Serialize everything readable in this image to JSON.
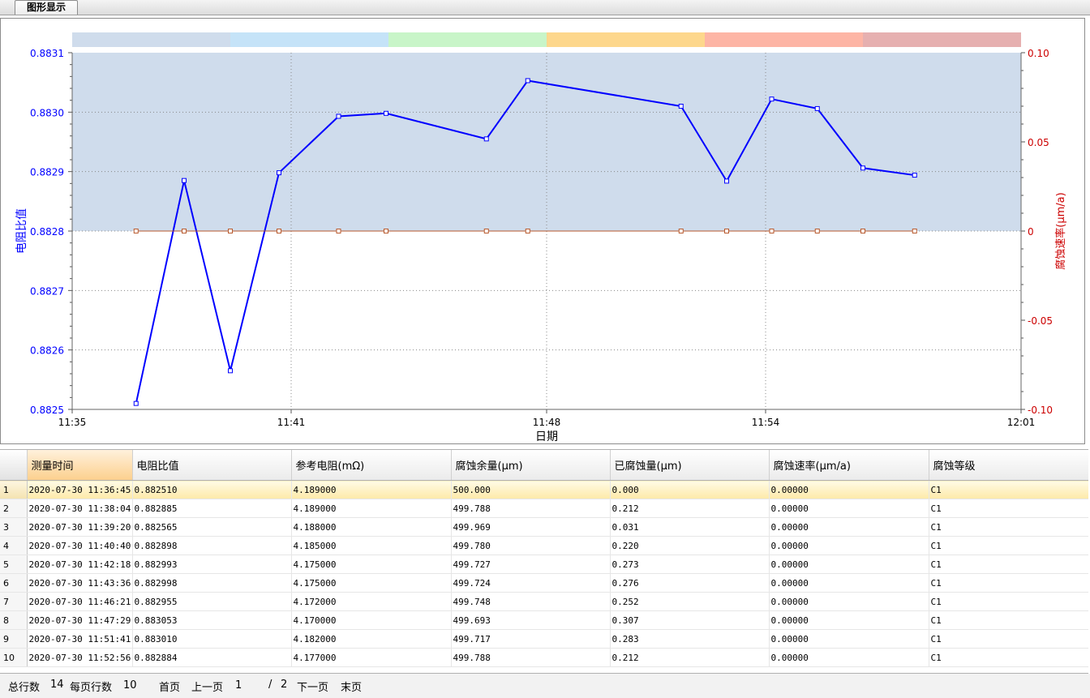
{
  "tab": {
    "label": "图形显示"
  },
  "chart_data": {
    "type": "line",
    "xlabel": "日期",
    "x_ticks": [
      "11:35",
      "11:41",
      "11:48",
      "11:54",
      "12:01"
    ],
    "y_left": {
      "label": "电阻比值",
      "range": [
        0.8825,
        0.8831
      ],
      "ticks": [
        "0.8825",
        "0.8826",
        "0.8827",
        "0.8828",
        "0.8829",
        "0.8830",
        "0.8831"
      ],
      "color": "#0000ff"
    },
    "y_right": {
      "label": "腐蚀速率(μm/a)",
      "range": [
        -0.1,
        0.1
      ],
      "ticks": [
        "-0.10",
        "-0.05",
        "0",
        "0.05",
        "0.10"
      ],
      "color": "#cc0000"
    },
    "band_colors": [
      "#cfdcec",
      "#c5e3f8",
      "#c8f5c8",
      "#fdd78c",
      "#fdb5a5",
      "#e6b0b0"
    ],
    "shaded_region_color": "#cfdcec",
    "x_range": [
      "11:35:00",
      "12:01:00"
    ],
    "series": [
      {
        "axis": "left",
        "color": "#0000ff",
        "x": [
          "11:36:45",
          "11:38:04",
          "11:39:20",
          "11:40:40",
          "11:42:18",
          "11:43:36",
          "11:46:21",
          "11:47:29",
          "11:51:41",
          "11:52:56",
          "11:54:10",
          "11:55:25",
          "11:56:40",
          "11:58:05"
        ],
        "values": [
          0.88251,
          0.882885,
          0.882565,
          0.882898,
          0.882993,
          0.882998,
          0.882955,
          0.883053,
          0.88301,
          0.882884,
          0.883022,
          0.883006,
          0.882906,
          0.882894
        ]
      },
      {
        "axis": "right",
        "color": "#b85a2e",
        "x": [
          "11:36:45",
          "11:38:04",
          "11:39:20",
          "11:40:40",
          "11:42:18",
          "11:43:36",
          "11:46:21",
          "11:47:29",
          "11:51:41",
          "11:52:56",
          "11:54:10",
          "11:55:25",
          "11:56:40",
          "11:58:05"
        ],
        "values": [
          0,
          0,
          0,
          0,
          0,
          0,
          0,
          0,
          0,
          0,
          0,
          0,
          0,
          0
        ]
      }
    ]
  },
  "table": {
    "columns": [
      "测量时间",
      "电阻比值",
      "参考电阻(mΩ)",
      "腐蚀余量(μm)",
      "已腐蚀量(μm)",
      "腐蚀速率(μm/a)",
      "腐蚀等级"
    ],
    "rows": [
      [
        "1",
        "2020-07-30 11:36:45",
        "0.882510",
        "4.189000",
        "500.000",
        "0.000",
        "0.00000",
        "C1"
      ],
      [
        "2",
        "2020-07-30 11:38:04",
        "0.882885",
        "4.189000",
        "499.788",
        "0.212",
        "0.00000",
        "C1"
      ],
      [
        "3",
        "2020-07-30 11:39:20",
        "0.882565",
        "4.188000",
        "499.969",
        "0.031",
        "0.00000",
        "C1"
      ],
      [
        "4",
        "2020-07-30 11:40:40",
        "0.882898",
        "4.185000",
        "499.780",
        "0.220",
        "0.00000",
        "C1"
      ],
      [
        "5",
        "2020-07-30 11:42:18",
        "0.882993",
        "4.175000",
        "499.727",
        "0.273",
        "0.00000",
        "C1"
      ],
      [
        "6",
        "2020-07-30 11:43:36",
        "0.882998",
        "4.175000",
        "499.724",
        "0.276",
        "0.00000",
        "C1"
      ],
      [
        "7",
        "2020-07-30 11:46:21",
        "0.882955",
        "4.172000",
        "499.748",
        "0.252",
        "0.00000",
        "C1"
      ],
      [
        "8",
        "2020-07-30 11:47:29",
        "0.883053",
        "4.170000",
        "499.693",
        "0.307",
        "0.00000",
        "C1"
      ],
      [
        "9",
        "2020-07-30 11:51:41",
        "0.883010",
        "4.182000",
        "499.717",
        "0.283",
        "0.00000",
        "C1"
      ],
      [
        "10",
        "2020-07-30 11:52:56",
        "0.882884",
        "4.177000",
        "499.788",
        "0.212",
        "0.00000",
        "C1"
      ]
    ],
    "selected_row": 0
  },
  "pager": {
    "total_label": "总行数",
    "total": "14",
    "per_page_label": "每页行数",
    "per_page": "10",
    "first": "首页",
    "prev": "上一页",
    "current_page": "1",
    "slash": "/",
    "total_pages": "2",
    "next": "下一页",
    "last": "末页"
  }
}
